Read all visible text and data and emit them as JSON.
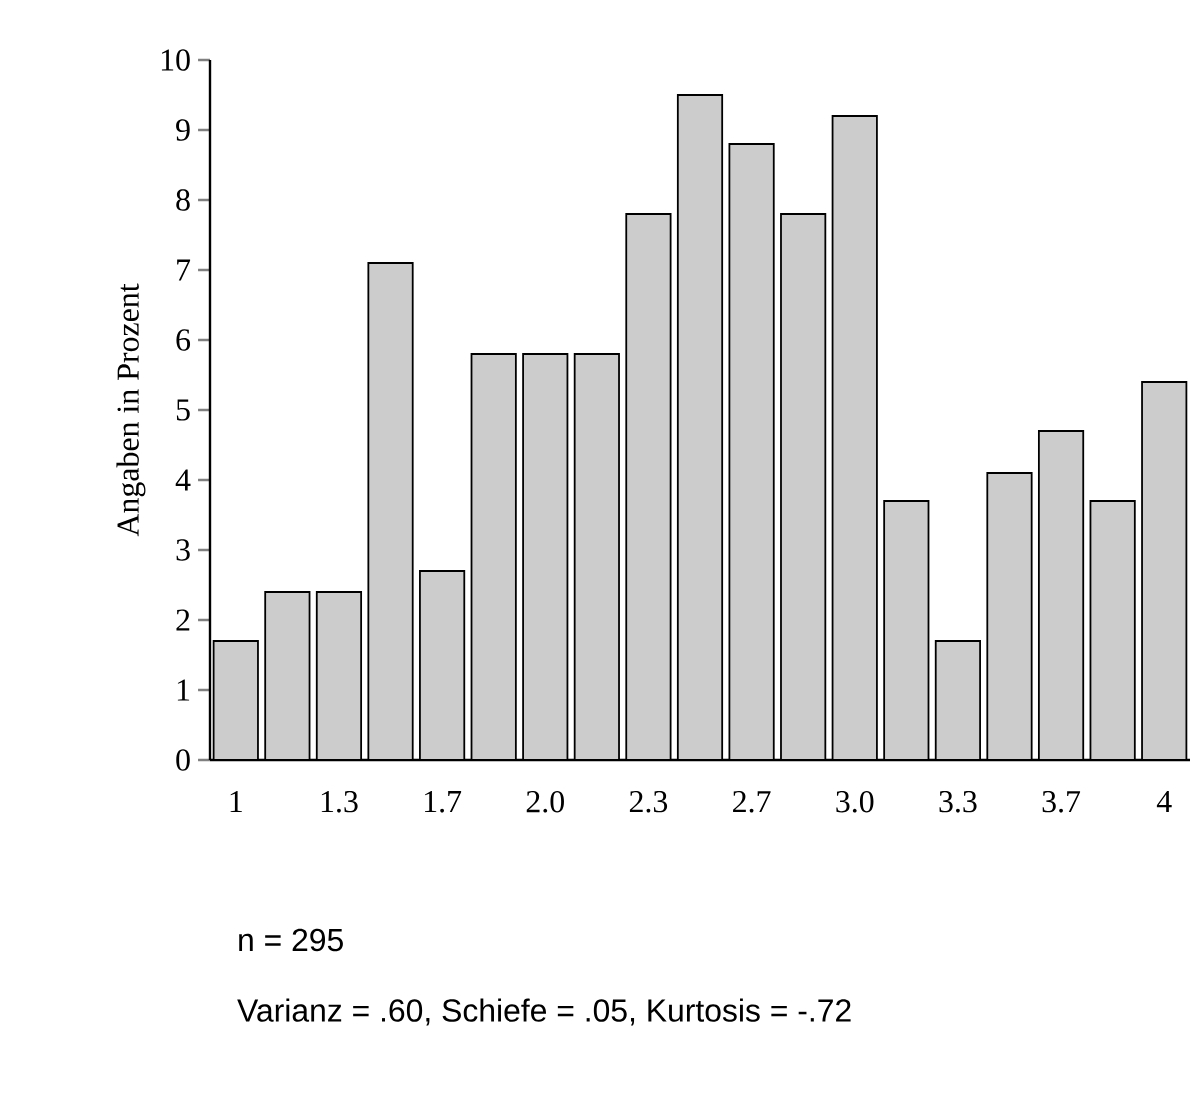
{
  "chart_data": {
    "type": "bar",
    "ylabel": "Angaben in Prozent",
    "categories": [
      "1",
      null,
      "1.3",
      null,
      "1.7",
      null,
      "2.0",
      null,
      "2.3",
      null,
      "2.7",
      null,
      "3.0",
      null,
      "3.3",
      null,
      "3.7",
      null,
      "4"
    ],
    "values": [
      1.7,
      2.4,
      2.4,
      7.1,
      2.7,
      5.8,
      5.8,
      5.8,
      7.8,
      9.5,
      8.8,
      7.8,
      9.2,
      3.7,
      1.7,
      4.1,
      4.7,
      3.7,
      5.4
    ],
    "color": "#cccccc",
    "ylim": [
      0,
      10
    ],
    "yticks": [
      0,
      1,
      2,
      3,
      4,
      5,
      6,
      7,
      8,
      9,
      10
    ],
    "annotations": [
      "n = 295",
      "Varianz = .60, Schiefe = .05, Kurtosis = -.72"
    ]
  }
}
